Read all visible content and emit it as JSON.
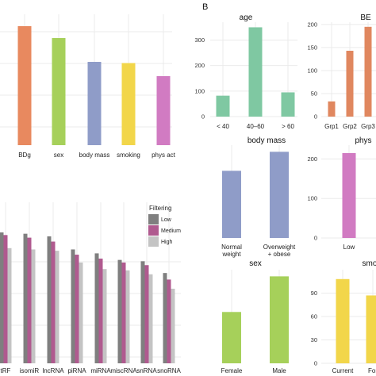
{
  "panel_letter": "B",
  "colors": {
    "bdg": "#E8895F",
    "sex": "#A6D05A",
    "body_mass": "#8F9CC8",
    "smoking": "#F2D64A",
    "phys_act": "#D17BC2",
    "age": "#7FC8A2",
    "bmi": "#E0875F",
    "low": "#7F7F7F",
    "medium": "#B05A8F",
    "high": "#C4C4C4",
    "grid": "#EBEBEB"
  },
  "chart_data": [
    {
      "id": "a-top",
      "type": "bar",
      "categories": [
        "BDg",
        "sex",
        "body mass",
        "smoking",
        "phys act"
      ],
      "values": [
        100,
        90,
        70,
        69,
        58
      ],
      "ylim": [
        0,
        110
      ],
      "grid": true
    },
    {
      "id": "a-bottom",
      "type": "bar",
      "categories": [
        "tRF",
        "isomiR",
        "lncRNA",
        "piRNA",
        "miRNA",
        "miscRNA",
        "snRNA",
        "snoRNA"
      ],
      "series": [
        {
          "name": "Low",
          "values": [
            100,
            99,
            97,
            87,
            84,
            79,
            78,
            69
          ]
        },
        {
          "name": "Medium",
          "values": [
            98,
            96,
            93,
            83,
            80,
            77,
            75,
            64
          ]
        },
        {
          "name": "High",
          "values": [
            88,
            87,
            86,
            77,
            72,
            71,
            68,
            57
          ]
        }
      ],
      "ylim": [
        0,
        110
      ],
      "grid": true,
      "legend": {
        "title": "Filtering",
        "position": "top-right"
      }
    },
    {
      "id": "age",
      "type": "bar",
      "title": "age",
      "categories": [
        "< 40",
        "40–60",
        "> 60"
      ],
      "values": [
        82,
        350,
        95
      ],
      "ylim": [
        0,
        370
      ],
      "yticks": [
        0,
        100,
        200,
        300
      ],
      "grid": true
    },
    {
      "id": "bmi",
      "type": "bar",
      "title": "BE",
      "categories": [
        "Grp1",
        "Grp2",
        "Grp3"
      ],
      "values": [
        33,
        143,
        195
      ],
      "ylim": [
        0,
        205
      ],
      "yticks": [
        0,
        50,
        100,
        150,
        200
      ],
      "grid": true
    },
    {
      "id": "bodymass",
      "type": "bar",
      "title": "body mass",
      "categories": [
        "Normal weight",
        "Overweight + obese"
      ],
      "values": [
        152,
        195
      ],
      "ylim": [
        0,
        210
      ],
      "grid": true
    },
    {
      "id": "phys",
      "type": "bar",
      "title": "phys",
      "categories": [
        "Low"
      ],
      "values": [
        215
      ],
      "ylim": [
        0,
        235
      ],
      "yticks": [
        0,
        100,
        200
      ],
      "grid": true
    },
    {
      "id": "sex",
      "type": "bar",
      "title": "sex",
      "categories": [
        "Female",
        "Male"
      ],
      "values": [
        170,
        288
      ],
      "ylim": [
        0,
        310
      ],
      "grid": true
    },
    {
      "id": "smoking",
      "type": "bar",
      "title": "smo",
      "categories": [
        "Current",
        "For"
      ],
      "values": [
        108,
        87
      ],
      "ylim": [
        0,
        120
      ],
      "yticks": [
        0,
        30,
        60,
        90
      ],
      "grid": true
    }
  ]
}
